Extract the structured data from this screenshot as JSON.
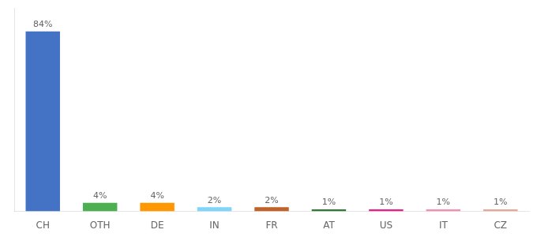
{
  "chart_data": {
    "type": "bar",
    "categories": [
      "CH",
      "OTH",
      "DE",
      "IN",
      "FR",
      "AT",
      "US",
      "IT",
      "CZ"
    ],
    "values": [
      84,
      4,
      4,
      2,
      2,
      1,
      1,
      1,
      1
    ],
    "value_labels": [
      "84%",
      "4%",
      "4%",
      "2%",
      "2%",
      "1%",
      "1%",
      "1%",
      "1%"
    ],
    "colors": [
      "#4472c4",
      "#4caf50",
      "#ff9800",
      "#81d4fa",
      "#c0622a",
      "#2e7d32",
      "#e91e8c",
      "#f48fb1",
      "#e8a898"
    ],
    "ylim": [
      0,
      95
    ],
    "data_labels": true,
    "tick_labels": "x",
    "grid": false
  }
}
